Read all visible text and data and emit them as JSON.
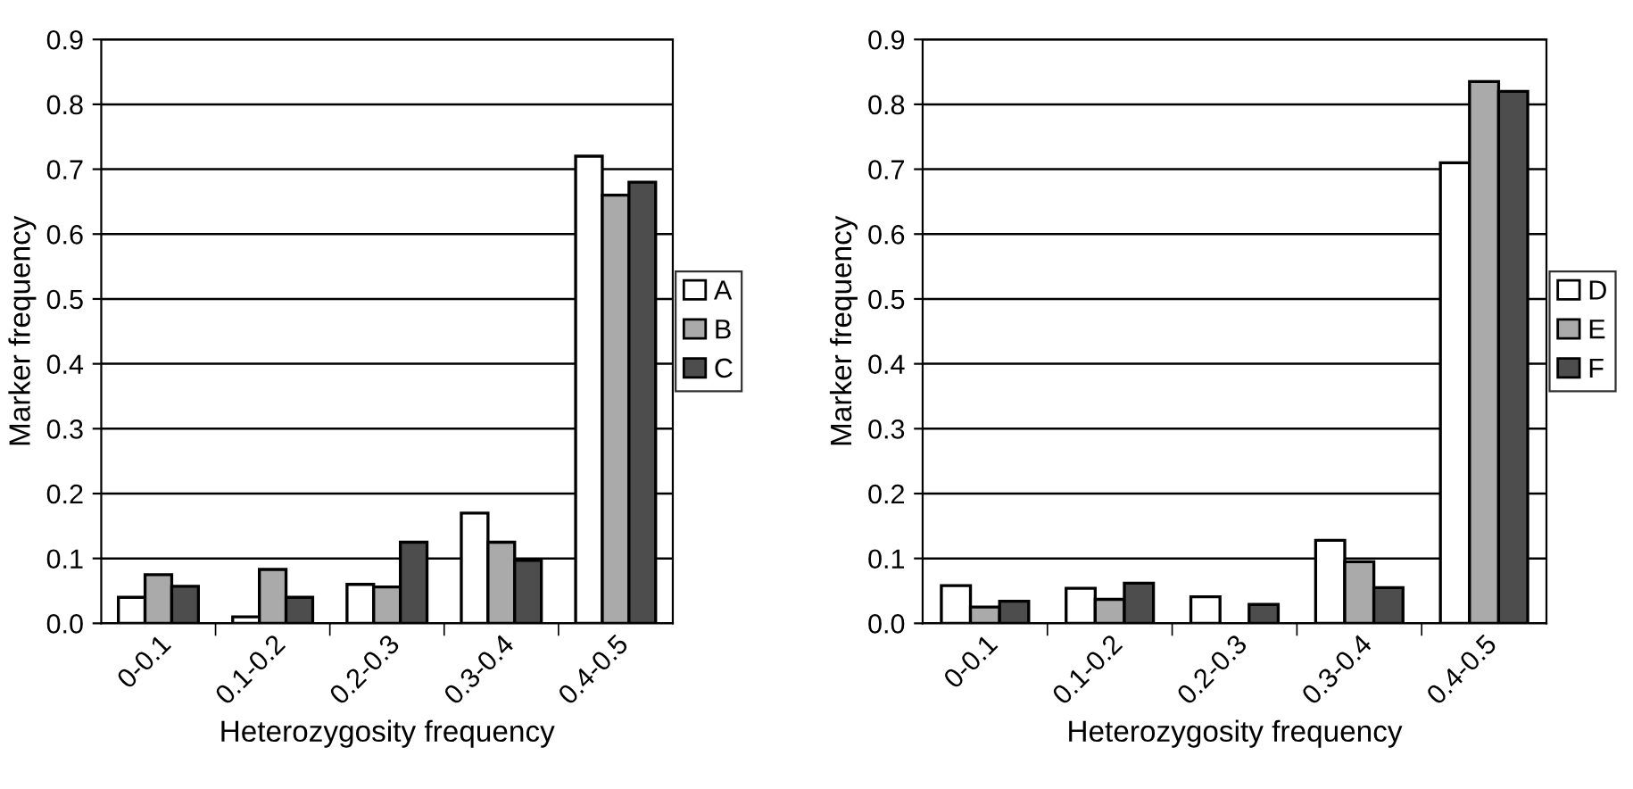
{
  "chart_data": [
    {
      "type": "bar",
      "xlabel": "Heterozygosity frequency",
      "ylabel": "Marker frequency",
      "categories": [
        "0-0.1",
        "0.1-0.2",
        "0.2-0.3",
        "0.3-0.4",
        "0.4-0.5"
      ],
      "ylim": [
        0,
        0.9
      ],
      "yticks": [
        {
          "value": 0,
          "label": "0.0"
        },
        0.1,
        0.2,
        0.3,
        0.4,
        0.5,
        0.6,
        0.7,
        0.8,
        0.9
      ],
      "grid": "y",
      "legend": "right",
      "series": [
        {
          "name": "A",
          "color": "#ffffff",
          "values": [
            0.04,
            0.01,
            0.06,
            0.17,
            0.72
          ]
        },
        {
          "name": "B",
          "color": "#aaaaaa",
          "values": [
            0.075,
            0.083,
            0.056,
            0.125,
            0.66
          ]
        },
        {
          "name": "C",
          "color": "#4d4d4d",
          "values": [
            0.057,
            0.04,
            0.125,
            0.097,
            0.68
          ]
        }
      ]
    },
    {
      "type": "bar",
      "xlabel": "Heterozygosity frequency",
      "ylabel": "Marker frequency",
      "categories": [
        "0-0.1",
        "0.1-0.2",
        "0.2-0.3",
        "0.3-0.4",
        "0.4-0.5"
      ],
      "ylim": [
        0,
        0.9
      ],
      "yticks": [
        {
          "value": 0,
          "label": "0.0"
        },
        0.1,
        0.2,
        0.3,
        0.4,
        0.5,
        0.6,
        0.7,
        0.8,
        0.9
      ],
      "grid": "y",
      "legend": "right",
      "series": [
        {
          "name": "D",
          "color": "#ffffff",
          "values": [
            0.058,
            0.054,
            0.041,
            0.128,
            0.71
          ]
        },
        {
          "name": "E",
          "color": "#aaaaaa",
          "values": [
            0.025,
            0.037,
            null,
            0.095,
            0.835
          ]
        },
        {
          "name": "F",
          "color": "#4d4d4d",
          "values": [
            0.034,
            0.062,
            0.029,
            0.055,
            0.82
          ]
        }
      ]
    }
  ]
}
